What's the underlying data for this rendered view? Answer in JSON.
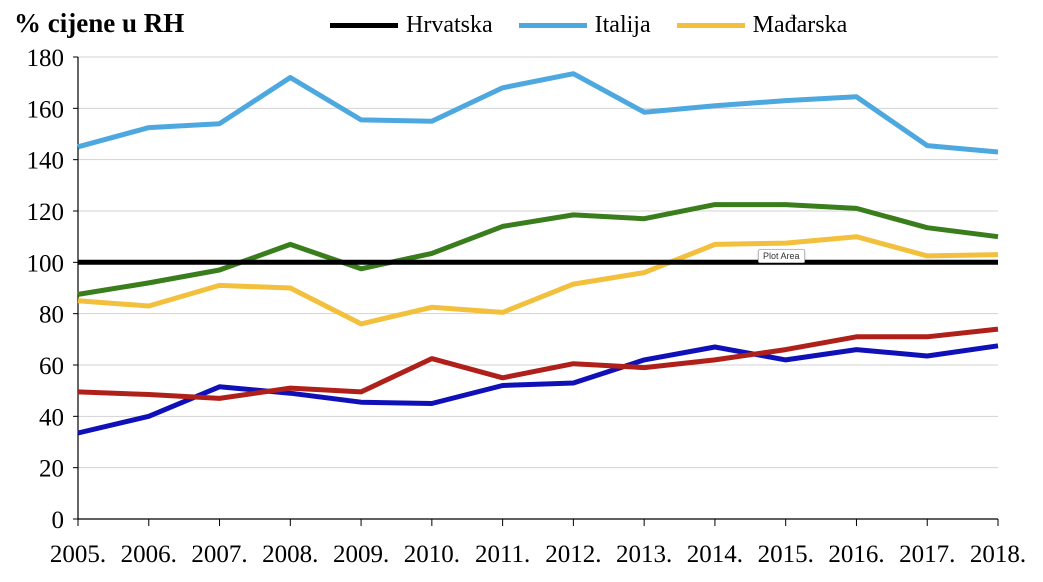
{
  "chart_data": {
    "type": "line",
    "ylabel": "% cijene u RH",
    "ylim": [
      0,
      180
    ],
    "yticks": [
      "0",
      "20",
      "40",
      "60",
      "80",
      "100",
      "120",
      "140",
      "160",
      "180"
    ],
    "categories": [
      "2005.",
      "2006.",
      "2007.",
      "2008.",
      "2009.",
      "2010.",
      "2011.",
      "2012.",
      "2013.",
      "2014.",
      "2015.",
      "2016.",
      "2017.",
      "2018."
    ],
    "grid": true,
    "legend_position": "top",
    "series": [
      {
        "name": "Hrvatska",
        "color": "#000000",
        "in_legend": true,
        "values": [
          100,
          100,
          100,
          100,
          100,
          100,
          100,
          100,
          100,
          100,
          100,
          100,
          100,
          100
        ]
      },
      {
        "name": "Italija",
        "color": "#4ea8e0",
        "in_legend": true,
        "values": [
          145,
          152.5,
          154,
          172,
          155.5,
          155,
          168,
          173.5,
          158.5,
          161,
          163,
          164.5,
          145.5,
          143
        ]
      },
      {
        "name": "Mađarska",
        "color": "#f2c03d",
        "in_legend": true,
        "values": [
          85,
          83,
          91,
          90,
          76,
          82.5,
          80.5,
          91.5,
          96,
          107,
          107.5,
          110,
          102.5,
          103
        ]
      },
      {
        "name": "",
        "color": "#3a7d1c",
        "in_legend": false,
        "values": [
          87.5,
          92,
          97,
          107,
          97.5,
          103.5,
          114,
          118.5,
          117,
          122.5,
          122.5,
          121,
          113.5,
          110
        ]
      },
      {
        "name": "",
        "color": "#1010b8",
        "in_legend": false,
        "values": [
          33.5,
          40,
          51.5,
          49,
          45.5,
          45,
          52,
          53,
          62,
          67,
          62,
          66,
          63.5,
          67.5
        ]
      },
      {
        "name": "",
        "color": "#b0201a",
        "in_legend": false,
        "values": [
          49.5,
          48.5,
          47,
          51,
          49.5,
          62.5,
          55,
          60.5,
          59,
          62,
          66,
          71,
          71,
          74
        ]
      }
    ]
  },
  "tooltip": {
    "text": "Plot Area"
  }
}
